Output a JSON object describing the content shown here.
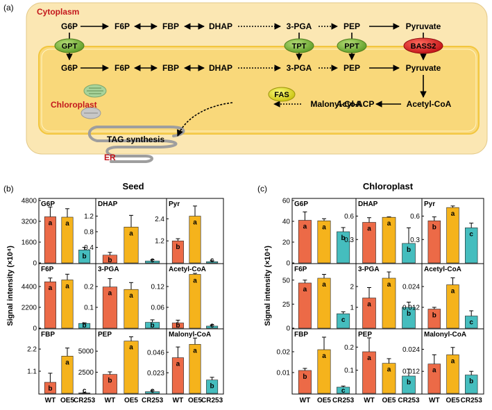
{
  "panel_a": {
    "label": "(a)",
    "cytoplasm_label": "Cytoplasm",
    "chloroplast_label": "Chloroplast",
    "er_label": "ER",
    "tag_label": "TAG synthesis",
    "top_row": [
      "G6P",
      "F6P",
      "FBP",
      "DHAP",
      "3-PGA",
      "PEP",
      "Pyruvate"
    ],
    "bottom_row": [
      "G6P",
      "F6P",
      "FBP",
      "DHAP",
      "3-PGA",
      "PEP",
      "Pyruvate"
    ],
    "lipid_row": [
      "Acyl-ACP",
      "Malonyl-CoA",
      "Acetyl-CoA"
    ],
    "transporters": [
      "GPT",
      "TPT",
      "PPT",
      "BASS2"
    ],
    "enzyme": "FAS",
    "colors": {
      "cytoplasm": "#fbe7b3",
      "chloroplast": "#f9d87a",
      "transporter_green": "#7dbd3b",
      "bass2": "#e0262b",
      "fas": "#e3e01a",
      "red_label": "#c3161c"
    }
  },
  "panel_b": {
    "label": "(b)",
    "title": "Seed",
    "ylabel": "Signal intensity (×10⁴)",
    "x_categories": [
      "WT",
      "OE5",
      "CR253"
    ]
  },
  "panel_c": {
    "label": "(c)",
    "title": "Chloroplast",
    "ylabel": "Signal intensity (×10⁴)",
    "x_categories": [
      "WT",
      "OE5",
      "CR253"
    ]
  },
  "chart_data": [
    {
      "type": "bar",
      "panel": "b",
      "metabolite": "G6P",
      "categories": [
        "WT",
        "OE5",
        "CR253"
      ],
      "values": [
        3550,
        3520,
        1000
      ],
      "errors": [
        750,
        650,
        200
      ],
      "letters": [
        "a",
        "a",
        "b"
      ],
      "ylim": [
        0,
        4800
      ],
      "yticks": [
        "0",
        "1600",
        "3200",
        "4800"
      ]
    },
    {
      "type": "bar",
      "panel": "b",
      "metabolite": "DHAP",
      "categories": [
        "WT",
        "OE5",
        "CR253"
      ],
      "values": [
        0.2,
        0.92,
        0.05
      ],
      "errors": [
        0.07,
        0.3,
        0.03
      ],
      "letters": [
        "b",
        "a",
        "c"
      ],
      "ylim": [
        0,
        1.6
      ],
      "yticks": [
        "0.4",
        "0.8",
        "1.2"
      ]
    },
    {
      "type": "bar",
      "panel": "b",
      "metabolite": "Pyr",
      "categories": [
        "WT",
        "OE5",
        "CR253"
      ],
      "values": [
        1.2,
        2.55,
        0.07
      ],
      "errors": [
        0.12,
        0.55,
        0.05
      ],
      "letters": [
        "b",
        "a",
        "c"
      ],
      "ylim": [
        0,
        3.4
      ],
      "yticks": [
        "1.2",
        "2.4"
      ]
    },
    {
      "type": "bar",
      "panel": "b",
      "metabolite": "F6P",
      "categories": [
        "WT",
        "OE5",
        "CR253"
      ],
      "values": [
        4900,
        5100,
        500
      ],
      "errors": [
        400,
        600,
        60
      ],
      "letters": [
        "a",
        "a",
        "b"
      ],
      "ylim": [
        0,
        6600
      ],
      "yticks": [
        "0",
        "2200",
        "4400"
      ]
    },
    {
      "type": "bar",
      "panel": "b",
      "metabolite": "3-PGA",
      "categories": [
        "WT",
        "OE5",
        "CR253"
      ],
      "values": [
        0.198,
        0.186,
        0.028
      ],
      "errors": [
        0.04,
        0.033,
        0.012
      ],
      "letters": [
        "a",
        "a",
        "b"
      ],
      "ylim": [
        0,
        0.3
      ],
      "yticks": [
        "0.1",
        "0.2"
      ]
    },
    {
      "type": "bar",
      "panel": "b",
      "metabolite": "Acetyl-CoA",
      "categories": [
        "WT",
        "OE5",
        "CR253"
      ],
      "values": [
        0.015,
        0.155,
        0.006
      ],
      "errors": [
        0.008,
        0.003,
        0.003
      ],
      "letters": [
        "b",
        "a",
        "c"
      ],
      "ylim": [
        0,
        0.18
      ],
      "yticks": [
        "0.06",
        "0.12"
      ]
    },
    {
      "type": "bar",
      "panel": "b",
      "metabolite": "FBP",
      "categories": [
        "WT",
        "OE5",
        "CR253"
      ],
      "values": [
        0.55,
        1.85,
        0.02
      ],
      "errors": [
        0.45,
        0.4,
        0.01
      ],
      "letters": [
        "b",
        "a",
        "c"
      ],
      "ylim": [
        0,
        3.1
      ],
      "yticks": [
        "1.1",
        "2.2"
      ]
    },
    {
      "type": "bar",
      "panel": "b",
      "metabolite": "PEP",
      "categories": [
        "WT",
        "OE5",
        "CR253"
      ],
      "values": [
        2250,
        6200,
        200
      ],
      "errors": [
        300,
        500,
        150
      ],
      "letters": [
        "b",
        "a",
        "c"
      ],
      "ylim": [
        0,
        7400
      ],
      "yticks": [
        "2500",
        "5000"
      ]
    },
    {
      "type": "bar",
      "panel": "b",
      "metabolite": "Malonyl-CoA",
      "categories": [
        "WT",
        "OE5",
        "CR253"
      ],
      "values": [
        0.04,
        0.055,
        0.015
      ],
      "errors": [
        0.012,
        0.007,
        0.003
      ],
      "letters": [
        "a",
        "a",
        "b"
      ],
      "ylim": [
        0,
        0.07
      ],
      "yticks": [
        "0.023",
        "0.046"
      ]
    },
    {
      "type": "bar",
      "panel": "c",
      "metabolite": "G6P",
      "categories": [
        "WT",
        "OE5",
        "CR253"
      ],
      "values": [
        41,
        40.5,
        30
      ],
      "errors": [
        8,
        2,
        4
      ],
      "letters": [
        "a",
        "a",
        "b"
      ],
      "ylim": [
        0,
        60
      ],
      "yticks": [
        "0",
        "20",
        "40",
        "60"
      ]
    },
    {
      "type": "bar",
      "panel": "c",
      "metabolite": "DHAP",
      "categories": [
        "WT",
        "OE5",
        "CR253"
      ],
      "values": [
        0.52,
        0.585,
        0.25
      ],
      "errors": [
        0.06,
        0.005,
        0.2
      ],
      "letters": [
        "a",
        "a",
        "b"
      ],
      "ylim": [
        0,
        0.8
      ],
      "yticks": [
        "0.3",
        "0.6"
      ]
    },
    {
      "type": "bar",
      "panel": "c",
      "metabolite": "Pyr",
      "categories": [
        "WT",
        "OE5",
        "CR253"
      ],
      "values": [
        0.54,
        0.71,
        0.45
      ],
      "errors": [
        0.05,
        0.02,
        0.06
      ],
      "letters": [
        "b",
        "a",
        "c"
      ],
      "ylim": [
        0,
        0.8
      ],
      "yticks": [
        "0.3",
        "0.6"
      ]
    },
    {
      "type": "bar",
      "panel": "c",
      "metabolite": "F6P",
      "categories": [
        "WT",
        "OE5",
        "CR253"
      ],
      "values": [
        47,
        52,
        15
      ],
      "errors": [
        3,
        4,
        2
      ],
      "letters": [
        "a",
        "a",
        "c"
      ],
      "ylim": [
        0,
        65
      ],
      "yticks": [
        "0",
        "25",
        "50"
      ]
    },
    {
      "type": "bar",
      "panel": "c",
      "metabolite": "3-PGA",
      "categories": [
        "WT",
        "OE5",
        "CR253"
      ],
      "values": [
        1.45,
        2.4,
        1.0
      ],
      "errors": [
        0.5,
        0.3,
        0.25
      ],
      "letters": [
        "a",
        "a",
        "b"
      ],
      "ylim": [
        0,
        3
      ],
      "yticks": [
        "1",
        "2"
      ]
    },
    {
      "type": "bar",
      "panel": "c",
      "metabolite": "Acetyl-CoA",
      "categories": [
        "WT",
        "OE5",
        "CR253"
      ],
      "values": [
        0.011,
        0.025,
        0.007
      ],
      "errors": [
        0.001,
        0.004,
        0.003
      ],
      "letters": [
        "b",
        "a",
        "c"
      ],
      "ylim": [
        0,
        0.036
      ],
      "yticks": [
        "0.012",
        "0.024"
      ]
    },
    {
      "type": "bar",
      "panel": "c",
      "metabolite": "FBP",
      "categories": [
        "WT",
        "OE5",
        "CR253"
      ],
      "values": [
        0.011,
        0.021,
        0.003
      ],
      "errors": [
        0.001,
        0.006,
        0.0005
      ],
      "letters": [
        "b",
        "a",
        "c"
      ],
      "ylim": [
        0,
        0.03
      ],
      "yticks": [
        "0.01",
        "0.02"
      ]
    },
    {
      "type": "bar",
      "panel": "c",
      "metabolite": "PEP",
      "categories": [
        "WT",
        "OE5",
        "CR253"
      ],
      "values": [
        0.18,
        0.13,
        0.075
      ],
      "errors": [
        0.06,
        0.02,
        0.03
      ],
      "letters": [
        "a",
        "a",
        "b"
      ],
      "ylim": [
        0,
        0.27
      ],
      "yticks": [
        "0.1",
        "0.2"
      ]
    },
    {
      "type": "bar",
      "panel": "c",
      "metabolite": "Malonyl-CoA",
      "categories": [
        "WT",
        "OE5",
        "CR253"
      ],
      "values": [
        0.016,
        0.021,
        0.01
      ],
      "errors": [
        0.005,
        0.004,
        0.002
      ],
      "letters": [
        "a",
        "a",
        "b"
      ],
      "ylim": [
        0,
        0.034
      ],
      "yticks": [
        "0.012",
        "0.024"
      ]
    }
  ],
  "bar_colors": [
    "#ec6a47",
    "#f5b31c",
    "#45bdbe"
  ]
}
